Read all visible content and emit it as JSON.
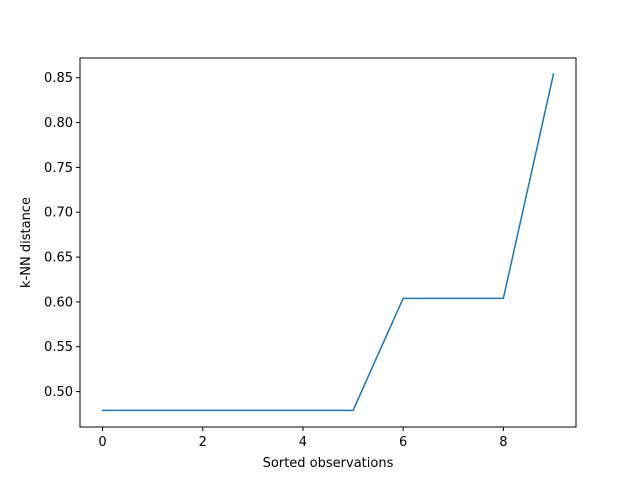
{
  "chart_data": {
    "type": "line",
    "title": "",
    "xlabel": "Sorted observations",
    "ylabel": "k-NN distance",
    "xlim": [
      -0.45,
      9.45
    ],
    "ylim": [
      0.4605,
      0.872
    ],
    "xticks": [
      0,
      2,
      4,
      6,
      8
    ],
    "xtick_labels": [
      "0",
      "2",
      "4",
      "6",
      "8"
    ],
    "yticks": [
      0.5,
      0.55,
      0.6,
      0.65,
      0.7,
      0.75,
      0.8,
      0.85
    ],
    "ytick_labels": [
      "0.50",
      "0.55",
      "0.60",
      "0.65",
      "0.70",
      "0.75",
      "0.80",
      "0.85"
    ],
    "grid": false,
    "series": [
      {
        "color": "#1f77b4",
        "x": [
          0,
          1,
          2,
          3,
          4,
          5,
          6,
          7,
          8,
          9
        ],
        "values": [
          0.479,
          0.479,
          0.479,
          0.479,
          0.479,
          0.479,
          0.604,
          0.604,
          0.604,
          0.854
        ]
      }
    ]
  }
}
